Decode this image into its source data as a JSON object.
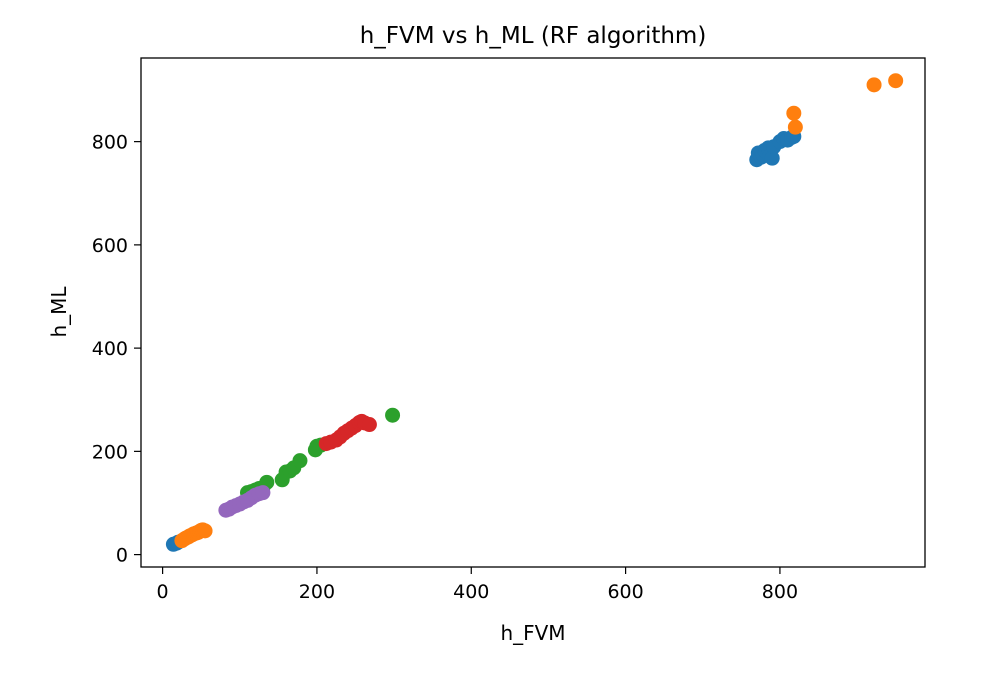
{
  "chart_data": {
    "type": "scatter",
    "title": "h_FVM vs h_ML (RF algorithm)",
    "xlabel": "h_FVM",
    "ylabel": "h_ML",
    "xlim": [
      -28,
      988
    ],
    "ylim": [
      -24,
      962
    ],
    "xticks": [
      0,
      200,
      400,
      600,
      800
    ],
    "yticks": [
      0,
      200,
      400,
      600,
      800
    ],
    "grid": false,
    "legend": "none",
    "series": [
      {
        "color": "#1f77b4",
        "points": [
          [
            14,
            20
          ],
          [
            18,
            22
          ],
          [
            20,
            24
          ],
          [
            770,
            765
          ],
          [
            772,
            778
          ],
          [
            776,
            770
          ],
          [
            778,
            775
          ],
          [
            780,
            783
          ],
          [
            782,
            780
          ],
          [
            785,
            788
          ],
          [
            787,
            772
          ],
          [
            790,
            768
          ],
          [
            792,
            790
          ],
          [
            800,
            800
          ],
          [
            805,
            806
          ],
          [
            810,
            803
          ],
          [
            815,
            808
          ],
          [
            818,
            810
          ]
        ]
      },
      {
        "color": "#ff7f0e",
        "points": [
          [
            25,
            27
          ],
          [
            28,
            30
          ],
          [
            30,
            32
          ],
          [
            33,
            34
          ],
          [
            35,
            36
          ],
          [
            38,
            38
          ],
          [
            40,
            40
          ],
          [
            42,
            41
          ],
          [
            44,
            42
          ],
          [
            46,
            43
          ],
          [
            48,
            45
          ],
          [
            50,
            47
          ],
          [
            52,
            48
          ],
          [
            55,
            46
          ],
          [
            818,
            855
          ],
          [
            820,
            828
          ],
          [
            922,
            910
          ],
          [
            950,
            918
          ]
        ]
      },
      {
        "color": "#2ca02c",
        "points": [
          [
            110,
            120
          ],
          [
            115,
            122
          ],
          [
            120,
            125
          ],
          [
            125,
            128
          ],
          [
            130,
            130
          ],
          [
            135,
            140
          ],
          [
            155,
            145
          ],
          [
            160,
            160
          ],
          [
            165,
            162
          ],
          [
            170,
            168
          ],
          [
            178,
            182
          ],
          [
            198,
            203
          ],
          [
            200,
            210
          ],
          [
            205,
            212
          ],
          [
            298,
            270
          ]
        ]
      },
      {
        "color": "#d62728",
        "points": [
          [
            212,
            215
          ],
          [
            218,
            218
          ],
          [
            225,
            222
          ],
          [
            230,
            228
          ],
          [
            235,
            235
          ],
          [
            240,
            240
          ],
          [
            245,
            245
          ],
          [
            250,
            250
          ],
          [
            255,
            256
          ],
          [
            258,
            258
          ],
          [
            262,
            255
          ],
          [
            268,
            252
          ]
        ]
      },
      {
        "color": "#9467bd",
        "points": [
          [
            82,
            86
          ],
          [
            86,
            88
          ],
          [
            90,
            92
          ],
          [
            95,
            95
          ],
          [
            100,
            98
          ],
          [
            105,
            102
          ],
          [
            110,
            105
          ],
          [
            115,
            110
          ],
          [
            120,
            115
          ],
          [
            125,
            118
          ],
          [
            130,
            120
          ]
        ]
      }
    ]
  }
}
